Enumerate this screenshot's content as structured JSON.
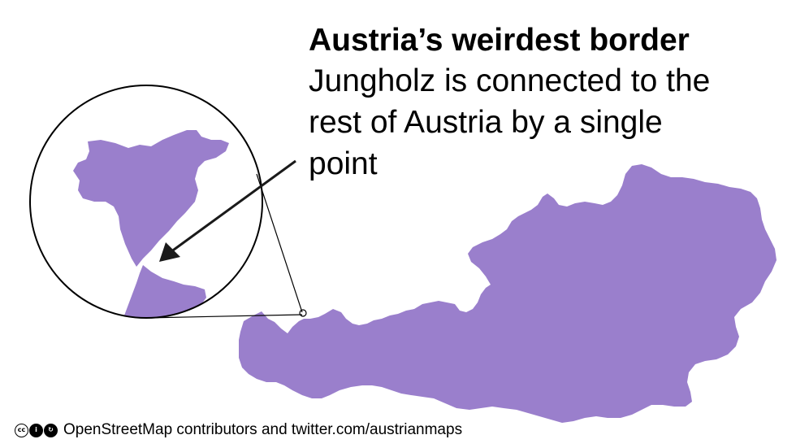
{
  "title": "Austria’s weirdest border",
  "subtitle": "Jungholz is connected to the rest of Austria by a single point",
  "attribution": {
    "text": "OpenStreetMap contributors and twitter.com/austrianmaps",
    "icons": [
      "cc-icon",
      "by-icon",
      "sa-icon"
    ],
    "icon_glyphs": [
      "cc",
      "i",
      "↻"
    ]
  },
  "colors": {
    "land": "#9a7fcc",
    "ink": "#000000",
    "background": "#ffffff"
  },
  "map": {
    "country": "Austria",
    "enclave": "Jungholz"
  }
}
